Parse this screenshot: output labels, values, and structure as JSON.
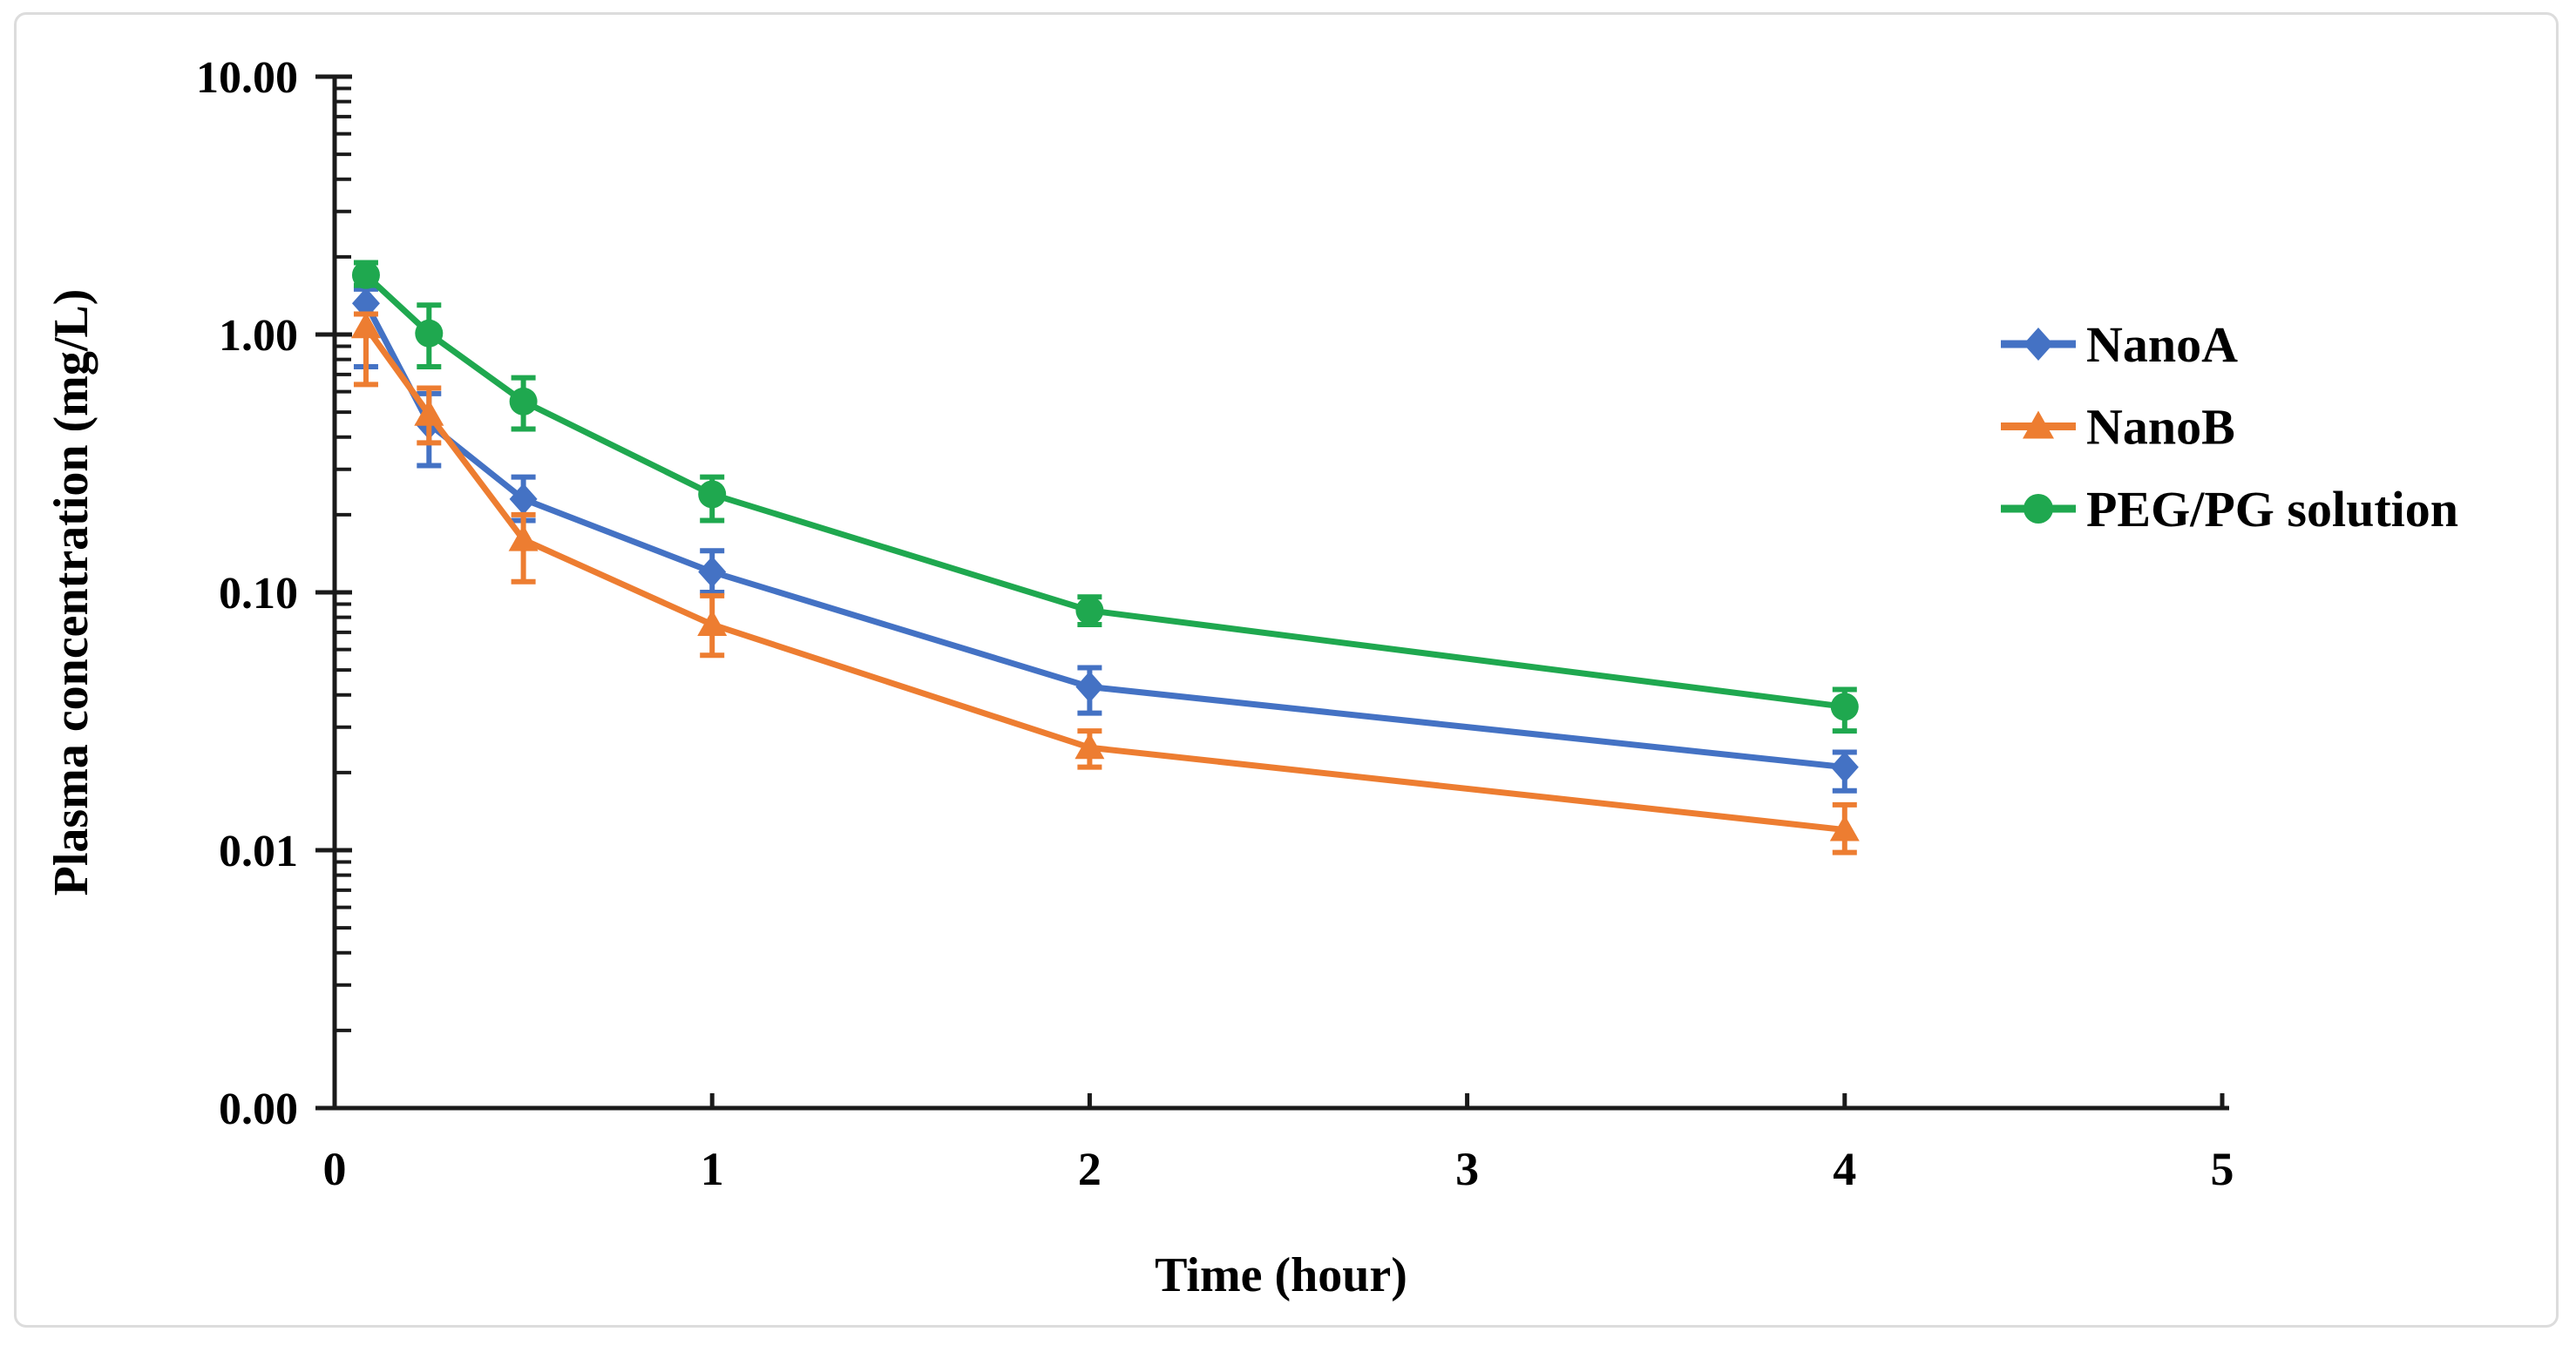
{
  "figure": {
    "background_color": "#ffffff",
    "frame_border_color": "#dcdcdc",
    "axis_line_color": "#1a1a1a",
    "text_color": "#000000"
  },
  "chart_data": {
    "type": "line",
    "title": "",
    "xlabel": "Time (hour)",
    "ylabel": "Plasma concentration (mg/L)",
    "grid": false,
    "legend_position": "right",
    "x_axis": {
      "scale": "linear",
      "min": 0,
      "max": 5,
      "tick_values": [
        0,
        1,
        2,
        3,
        4,
        5
      ],
      "tick_labels": [
        "0",
        "1",
        "2",
        "3",
        "4",
        "5"
      ]
    },
    "y_axis": {
      "scale": "log",
      "min": 0.001,
      "max": 10,
      "tick_values": [
        10,
        1,
        0.1,
        0.01,
        0.001
      ],
      "tick_labels": [
        "10.00",
        "1.00",
        "0.10",
        "0.01",
        "0.00"
      ],
      "minor_ticks": true
    },
    "x": [
      0.083,
      0.25,
      0.5,
      1,
      2,
      4
    ],
    "series": [
      {
        "name": "NanoA",
        "color": "#4472C4",
        "marker": "diamond",
        "values": [
          1.32,
          0.45,
          0.23,
          0.12,
          0.043,
          0.021
        ],
        "err_lo": [
          0.75,
          0.31,
          0.19,
          0.1,
          0.034,
          0.017
        ],
        "err_hi": [
          1.5,
          0.59,
          0.28,
          0.145,
          0.051,
          0.024
        ]
      },
      {
        "name": "NanoB",
        "color": "#ED7D31",
        "marker": "triangle",
        "values": [
          1.07,
          0.49,
          0.16,
          0.075,
          0.025,
          0.012
        ],
        "err_lo": [
          0.64,
          0.38,
          0.11,
          0.057,
          0.021,
          0.0098
        ],
        "err_hi": [
          1.2,
          0.62,
          0.2,
          0.097,
          0.029,
          0.015
        ]
      },
      {
        "name": "PEG/PG solution",
        "color": "#1FA84F",
        "marker": "circle",
        "values": [
          1.7,
          1.01,
          0.55,
          0.24,
          0.085,
          0.036
        ],
        "err_lo": [
          1.55,
          0.75,
          0.43,
          0.19,
          0.075,
          0.029
        ],
        "err_hi": [
          1.9,
          1.3,
          0.68,
          0.28,
          0.096,
          0.042
        ]
      }
    ]
  }
}
